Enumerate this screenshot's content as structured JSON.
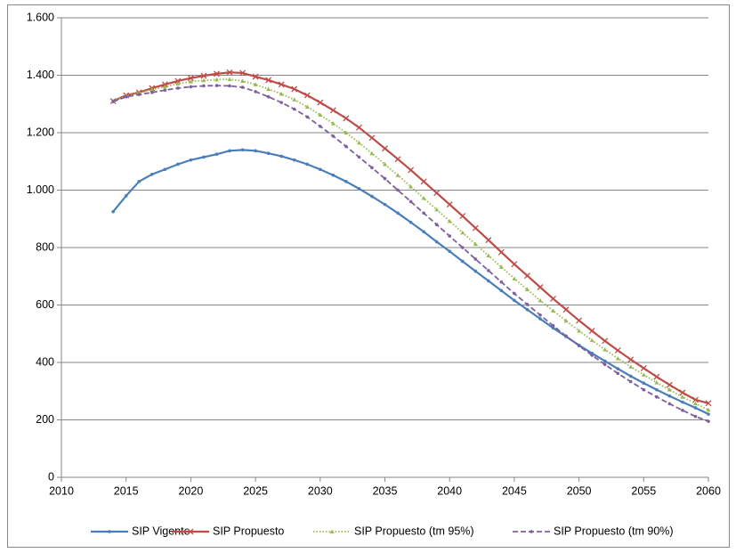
{
  "chart_data": {
    "type": "line",
    "x": [
      2014,
      2015,
      2016,
      2017,
      2018,
      2019,
      2020,
      2021,
      2022,
      2023,
      2024,
      2025,
      2026,
      2027,
      2028,
      2029,
      2030,
      2031,
      2032,
      2033,
      2034,
      2035,
      2036,
      2037,
      2038,
      2039,
      2040,
      2041,
      2042,
      2043,
      2044,
      2045,
      2046,
      2047,
      2048,
      2049,
      2050,
      2051,
      2052,
      2053,
      2054,
      2055,
      2056,
      2057,
      2058,
      2059,
      2060
    ],
    "series": [
      {
        "name": "SIP Vigente",
        "color": "#4a7ebb",
        "style": "solid",
        "marker": "dot",
        "values": [
          925,
          980,
          1030,
          1055,
          1072,
          1090,
          1105,
          1115,
          1125,
          1137,
          1140,
          1137,
          1128,
          1118,
          1105,
          1090,
          1072,
          1052,
          1030,
          1005,
          978,
          950,
          920,
          888,
          855,
          820,
          787,
          752,
          718,
          684,
          650,
          616,
          584,
          552,
          520,
          490,
          460,
          432,
          405,
          378,
          352,
          328,
          305,
          283,
          262,
          242,
          220
        ]
      },
      {
        "name": "SIP Propuesto",
        "color": "#be4b48",
        "style": "solid",
        "marker": "x",
        "values": [
          1310,
          1330,
          1340,
          1355,
          1368,
          1380,
          1390,
          1398,
          1405,
          1410,
          1408,
          1395,
          1383,
          1368,
          1352,
          1330,
          1305,
          1278,
          1250,
          1218,
          1182,
          1145,
          1108,
          1070,
          1030,
          990,
          950,
          910,
          868,
          826,
          784,
          742,
          702,
          662,
          622,
          584,
          546,
          510,
          475,
          442,
          410,
          380,
          350,
          322,
          295,
          270,
          258
        ]
      },
      {
        "name": "SIP Propuesto (tm 95%)",
        "color": "#98b954",
        "style": "dotted",
        "marker": "triangle",
        "values": [
          1310,
          1328,
          1338,
          1350,
          1360,
          1370,
          1378,
          1382,
          1385,
          1386,
          1380,
          1368,
          1352,
          1335,
          1315,
          1290,
          1262,
          1232,
          1200,
          1165,
          1128,
          1090,
          1052,
          1012,
          972,
          932,
          892,
          852,
          812,
          772,
          732,
          692,
          654,
          616,
          580,
          545,
          510,
          477,
          445,
          414,
          385,
          357,
          330,
          305,
          280,
          257,
          235
        ]
      },
      {
        "name": "SIP Propuesto (tm 90%)",
        "color": "#7d60a0",
        "style": "dashed",
        "marker": "dot",
        "values": [
          1308,
          1325,
          1333,
          1340,
          1348,
          1355,
          1360,
          1363,
          1364,
          1363,
          1358,
          1343,
          1325,
          1305,
          1282,
          1255,
          1222,
          1188,
          1152,
          1115,
          1078,
          1040,
          1000,
          960,
          920,
          880,
          840,
          800,
          760,
          720,
          680,
          640,
          602,
          565,
          528,
          492,
          458,
          425,
          393,
          362,
          333,
          305,
          280,
          256,
          233,
          212,
          195
        ]
      }
    ],
    "xlim": [
      2010,
      2060
    ],
    "xticks": [
      2010,
      2015,
      2020,
      2025,
      2030,
      2035,
      2040,
      2045,
      2050,
      2055,
      2060
    ],
    "ylim": [
      0,
      1600
    ],
    "yticks": [
      0,
      200,
      400,
      600,
      800,
      {
        "value": 1000,
        "label": "1.000"
      },
      {
        "value": 1200,
        "label": "1.200"
      },
      {
        "value": 1400,
        "label": "1.400"
      },
      {
        "value": 1600,
        "label": "1.600"
      }
    ],
    "grid": true,
    "legend": "bottom"
  }
}
